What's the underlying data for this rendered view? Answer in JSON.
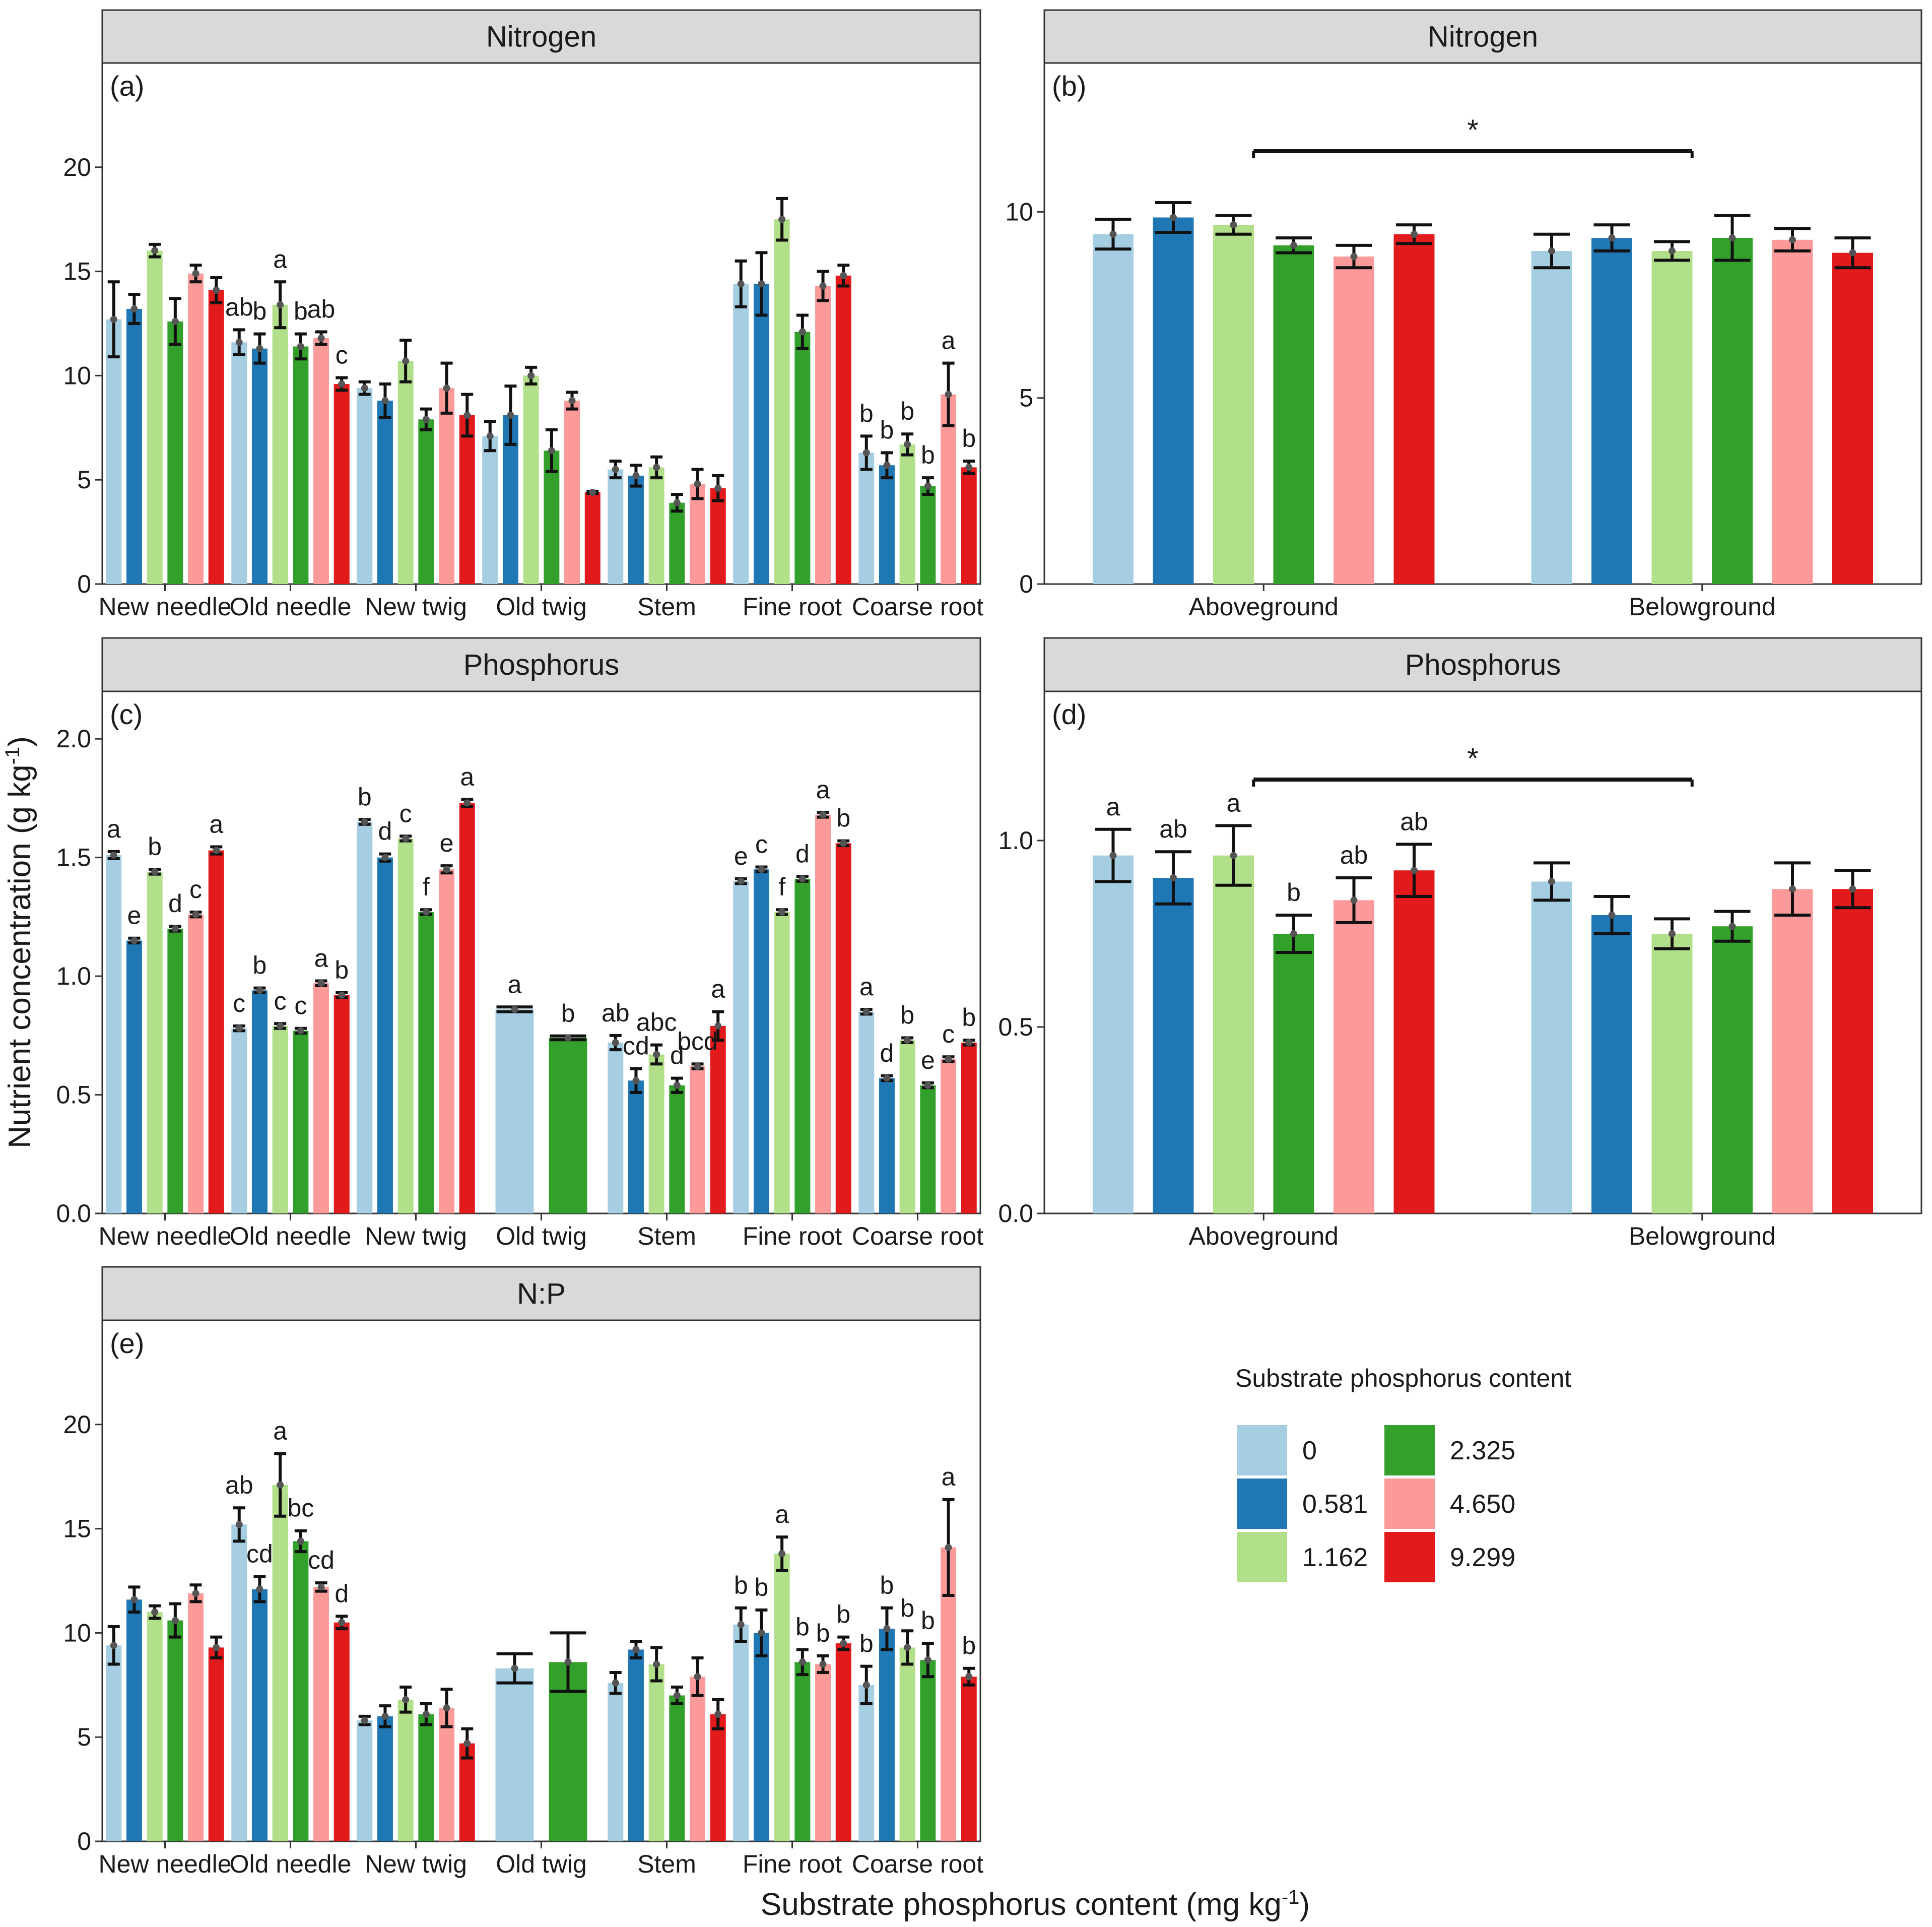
{
  "figure": {
    "x_axis_title": "Substrate phosphorus content (mg kg",
    "x_axis_title_sup": "-1",
    "x_axis_title_end": ")",
    "y_axis_title": "Nutrient concentration (g kg",
    "y_axis_title_sup": "-1",
    "y_axis_title_end": ")"
  },
  "legend": {
    "title": "Substrate phosphorus content",
    "items": [
      {
        "label": "0",
        "color": "#a6cee3"
      },
      {
        "label": "0.581",
        "color": "#1f78b4"
      },
      {
        "label": "1.162",
        "color": "#b2df8a"
      },
      {
        "label": "2.325",
        "color": "#33a02c"
      },
      {
        "label": "4.650",
        "color": "#fb9a99"
      },
      {
        "label": "9.299",
        "color": "#e31a1c"
      }
    ]
  },
  "chart_data": [
    {
      "id": "a",
      "type": "bar",
      "strip": "Nitrogen",
      "panel_label": "(a)",
      "ylim": [
        0,
        25
      ],
      "yticks": [
        "0",
        "5",
        "10",
        "15",
        "20"
      ],
      "ytick_values": [
        0,
        5,
        10,
        15,
        20
      ],
      "categories": [
        "New needle",
        "Old needle",
        "New twig",
        "Old twig",
        "Stem",
        "Fine root",
        "Coarse root"
      ],
      "series_names": [
        "0",
        "0.581",
        "1.162",
        "2.325",
        "4.650",
        "9.299"
      ],
      "values": [
        [
          12.7,
          13.2,
          16.0,
          12.6,
          14.9,
          14.1
        ],
        [
          11.6,
          11.3,
          13.4,
          11.4,
          11.8,
          9.6
        ],
        [
          9.4,
          8.8,
          10.7,
          7.9,
          9.4,
          8.1
        ],
        [
          7.1,
          8.1,
          10.0,
          6.4,
          8.8,
          4.4
        ],
        [
          5.5,
          5.2,
          5.6,
          3.9,
          4.8,
          4.6
        ],
        [
          14.4,
          14.4,
          17.5,
          12.1,
          14.3,
          14.8
        ],
        [
          6.3,
          5.7,
          6.7,
          4.7,
          9.1,
          5.6
        ]
      ],
      "errors": [
        [
          1.8,
          0.7,
          0.3,
          1.1,
          0.4,
          0.6
        ],
        [
          0.6,
          0.7,
          1.1,
          0.6,
          0.3,
          0.3
        ],
        [
          0.3,
          0.8,
          1.0,
          0.5,
          1.2,
          1.0
        ],
        [
          0.7,
          1.4,
          0.4,
          1.0,
          0.4,
          0.05
        ],
        [
          0.4,
          0.5,
          0.5,
          0.4,
          0.7,
          0.6
        ],
        [
          1.1,
          1.5,
          1.0,
          0.8,
          0.7,
          0.5
        ],
        [
          0.8,
          0.6,
          0.5,
          0.4,
          1.5,
          0.3
        ]
      ],
      "sig_labels": [
        {
          "cat": 1,
          "s": 0,
          "text": "ab"
        },
        {
          "cat": 1,
          "s": 1,
          "text": "b"
        },
        {
          "cat": 1,
          "s": 2,
          "text": "a"
        },
        {
          "cat": 1,
          "s": 3,
          "text": "b"
        },
        {
          "cat": 1,
          "s": 4,
          "text": "ab"
        },
        {
          "cat": 1,
          "s": 5,
          "text": "c"
        },
        {
          "cat": 6,
          "s": 0,
          "text": "b"
        },
        {
          "cat": 6,
          "s": 1,
          "text": "b"
        },
        {
          "cat": 6,
          "s": 2,
          "text": "b"
        },
        {
          "cat": 6,
          "s": 3,
          "text": "b"
        },
        {
          "cat": 6,
          "s": 4,
          "text": "a"
        },
        {
          "cat": 6,
          "s": 5,
          "text": "b"
        }
      ]
    },
    {
      "id": "b",
      "type": "bar",
      "strip": "Nitrogen",
      "panel_label": "(b)",
      "ylim": [
        0,
        14
      ],
      "yticks": [
        "0",
        "5",
        "10"
      ],
      "ytick_values": [
        0,
        5,
        10
      ],
      "categories": [
        "Aboveground",
        "Belowground"
      ],
      "series_names": [
        "0",
        "0.581",
        "1.162",
        "2.325",
        "4.650",
        "9.299"
      ],
      "values": [
        [
          9.4,
          9.85,
          9.65,
          9.1,
          8.8,
          9.4
        ],
        [
          8.95,
          9.3,
          8.95,
          9.3,
          9.25,
          8.9
        ]
      ],
      "errors": [
        [
          0.4,
          0.4,
          0.25,
          0.2,
          0.3,
          0.25
        ],
        [
          0.45,
          0.35,
          0.25,
          0.6,
          0.3,
          0.4
        ]
      ],
      "significance": "*",
      "sig_labels": []
    },
    {
      "id": "c",
      "type": "bar",
      "strip": "Phosphorus",
      "panel_label": "(c)",
      "ylim": [
        0,
        2.2
      ],
      "yticks": [
        "0.0",
        "0.5",
        "1.0",
        "1.5",
        "2.0"
      ],
      "ytick_values": [
        0,
        0.5,
        1.0,
        1.5,
        2.0
      ],
      "categories": [
        "New needle",
        "Old needle",
        "New twig",
        "Old twig",
        "Stem",
        "Fine root",
        "Coarse root"
      ],
      "series_names": [
        "0",
        "0.581",
        "1.162",
        "2.325",
        "4.650",
        "9.299"
      ],
      "values": [
        [
          1.51,
          1.15,
          1.44,
          1.2,
          1.26,
          1.53
        ],
        [
          0.78,
          0.94,
          0.79,
          0.77,
          0.97,
          0.92
        ],
        [
          1.65,
          1.5,
          1.58,
          1.27,
          1.45,
          1.73
        ],
        [
          0.86,
          null,
          null,
          0.74,
          null,
          null
        ],
        [
          0.72,
          0.56,
          0.67,
          0.54,
          0.62,
          0.79
        ],
        [
          1.4,
          1.45,
          1.27,
          1.41,
          1.68,
          1.56
        ],
        [
          0.85,
          0.57,
          0.73,
          0.54,
          0.65,
          0.72
        ]
      ],
      "errors": [
        [
          0.015,
          0.01,
          0.01,
          0.01,
          0.01,
          0.015
        ],
        [
          0.01,
          0.01,
          0.01,
          0.01,
          0.01,
          0.01
        ],
        [
          0.01,
          0.015,
          0.01,
          0.01,
          0.015,
          0.015
        ],
        [
          0.01,
          null,
          null,
          0.008,
          null,
          null
        ],
        [
          0.03,
          0.05,
          0.04,
          0.03,
          0.01,
          0.06
        ],
        [
          0.01,
          0.01,
          0.01,
          0.01,
          0.01,
          0.01
        ],
        [
          0.01,
          0.01,
          0.01,
          0.01,
          0.01,
          0.01
        ]
      ],
      "sig_labels": [
        {
          "cat": 0,
          "s": 0,
          "text": "a"
        },
        {
          "cat": 0,
          "s": 1,
          "text": "e"
        },
        {
          "cat": 0,
          "s": 2,
          "text": "b"
        },
        {
          "cat": 0,
          "s": 3,
          "text": "d"
        },
        {
          "cat": 0,
          "s": 4,
          "text": "c"
        },
        {
          "cat": 0,
          "s": 5,
          "text": "a"
        },
        {
          "cat": 1,
          "s": 0,
          "text": "c"
        },
        {
          "cat": 1,
          "s": 1,
          "text": "b"
        },
        {
          "cat": 1,
          "s": 2,
          "text": "c"
        },
        {
          "cat": 1,
          "s": 3,
          "text": "c"
        },
        {
          "cat": 1,
          "s": 4,
          "text": "a"
        },
        {
          "cat": 1,
          "s": 5,
          "text": "b"
        },
        {
          "cat": 2,
          "s": 0,
          "text": "b"
        },
        {
          "cat": 2,
          "s": 1,
          "text": "d"
        },
        {
          "cat": 2,
          "s": 2,
          "text": "c"
        },
        {
          "cat": 2,
          "s": 3,
          "text": "f"
        },
        {
          "cat": 2,
          "s": 4,
          "text": "e"
        },
        {
          "cat": 2,
          "s": 5,
          "text": "a"
        },
        {
          "cat": 3,
          "s": 0,
          "text": "a"
        },
        {
          "cat": 3,
          "s": 3,
          "text": "b"
        },
        {
          "cat": 4,
          "s": 0,
          "text": "ab"
        },
        {
          "cat": 4,
          "s": 1,
          "text": "cd"
        },
        {
          "cat": 4,
          "s": 2,
          "text": "abc"
        },
        {
          "cat": 4,
          "s": 3,
          "text": "d"
        },
        {
          "cat": 4,
          "s": 4,
          "text": "bcd"
        },
        {
          "cat": 4,
          "s": 5,
          "text": "a"
        },
        {
          "cat": 5,
          "s": 0,
          "text": "e"
        },
        {
          "cat": 5,
          "s": 1,
          "text": "c"
        },
        {
          "cat": 5,
          "s": 2,
          "text": "f"
        },
        {
          "cat": 5,
          "s": 3,
          "text": "d"
        },
        {
          "cat": 5,
          "s": 4,
          "text": "a"
        },
        {
          "cat": 5,
          "s": 5,
          "text": "b"
        },
        {
          "cat": 6,
          "s": 0,
          "text": "a"
        },
        {
          "cat": 6,
          "s": 1,
          "text": "d"
        },
        {
          "cat": 6,
          "s": 2,
          "text": "b"
        },
        {
          "cat": 6,
          "s": 3,
          "text": "e"
        },
        {
          "cat": 6,
          "s": 4,
          "text": "c"
        },
        {
          "cat": 6,
          "s": 5,
          "text": "b"
        }
      ]
    },
    {
      "id": "d",
      "type": "bar",
      "strip": "Phosphorus",
      "panel_label": "(d)",
      "ylim": [
        0,
        1.4
      ],
      "yticks": [
        "0.0",
        "0.5",
        "1.0"
      ],
      "ytick_values": [
        0,
        0.5,
        1.0
      ],
      "categories": [
        "Aboveground",
        "Belowground"
      ],
      "series_names": [
        "0",
        "0.581",
        "1.162",
        "2.325",
        "4.650",
        "9.299"
      ],
      "values": [
        [
          0.96,
          0.9,
          0.96,
          0.75,
          0.84,
          0.92
        ],
        [
          0.89,
          0.8,
          0.75,
          0.77,
          0.87,
          0.87
        ]
      ],
      "errors": [
        [
          0.07,
          0.07,
          0.08,
          0.05,
          0.06,
          0.07
        ],
        [
          0.05,
          0.05,
          0.04,
          0.04,
          0.07,
          0.05
        ]
      ],
      "significance": "*",
      "sig_labels": [
        {
          "cat": 0,
          "s": 0,
          "text": "a"
        },
        {
          "cat": 0,
          "s": 1,
          "text": "ab"
        },
        {
          "cat": 0,
          "s": 2,
          "text": "a"
        },
        {
          "cat": 0,
          "s": 3,
          "text": "b"
        },
        {
          "cat": 0,
          "s": 4,
          "text": "ab"
        },
        {
          "cat": 0,
          "s": 5,
          "text": "ab"
        }
      ]
    },
    {
      "id": "e",
      "type": "bar",
      "strip": "N:P",
      "panel_label": "(e)",
      "ylim": [
        0,
        25
      ],
      "yticks": [
        "0",
        "5",
        "10",
        "15",
        "20"
      ],
      "ytick_values": [
        0,
        5,
        10,
        15,
        20
      ],
      "categories": [
        "New needle",
        "Old needle",
        "New twig",
        "Old twig",
        "Stem",
        "Fine root",
        "Coarse root"
      ],
      "series_names": [
        "0",
        "0.581",
        "1.162",
        "2.325",
        "4.650",
        "9.299"
      ],
      "values": [
        [
          9.4,
          11.6,
          11.0,
          10.6,
          11.9,
          9.3
        ],
        [
          15.2,
          12.1,
          17.1,
          14.4,
          12.2,
          10.5
        ],
        [
          5.8,
          6.0,
          6.8,
          6.1,
          6.4,
          4.7
        ],
        [
          8.3,
          null,
          null,
          8.6,
          null,
          null
        ],
        [
          7.6,
          9.2,
          8.5,
          7.0,
          7.9,
          6.1
        ],
        [
          10.4,
          10.0,
          13.8,
          8.6,
          8.5,
          9.5
        ],
        [
          7.5,
          10.2,
          9.3,
          8.7,
          14.1,
          7.9
        ]
      ],
      "errors": [
        [
          0.9,
          0.6,
          0.3,
          0.8,
          0.4,
          0.5
        ],
        [
          0.8,
          0.6,
          1.5,
          0.5,
          0.2,
          0.3
        ],
        [
          0.2,
          0.5,
          0.6,
          0.5,
          0.9,
          0.7
        ],
        [
          0.7,
          null,
          null,
          1.4,
          null,
          null
        ],
        [
          0.5,
          0.4,
          0.8,
          0.4,
          0.9,
          0.7
        ],
        [
          0.8,
          1.1,
          0.8,
          0.6,
          0.4,
          0.3
        ],
        [
          0.9,
          1.0,
          0.8,
          0.8,
          2.3,
          0.4
        ]
      ],
      "sig_labels": [
        {
          "cat": 1,
          "s": 0,
          "text": "ab"
        },
        {
          "cat": 1,
          "s": 1,
          "text": "cd"
        },
        {
          "cat": 1,
          "s": 2,
          "text": "a"
        },
        {
          "cat": 1,
          "s": 3,
          "text": "bc"
        },
        {
          "cat": 1,
          "s": 4,
          "text": "cd"
        },
        {
          "cat": 1,
          "s": 5,
          "text": "d"
        },
        {
          "cat": 5,
          "s": 0,
          "text": "b"
        },
        {
          "cat": 5,
          "s": 1,
          "text": "b"
        },
        {
          "cat": 5,
          "s": 2,
          "text": "a"
        },
        {
          "cat": 5,
          "s": 3,
          "text": "b"
        },
        {
          "cat": 5,
          "s": 4,
          "text": "b"
        },
        {
          "cat": 5,
          "s": 5,
          "text": "b"
        },
        {
          "cat": 6,
          "s": 0,
          "text": "b"
        },
        {
          "cat": 6,
          "s": 1,
          "text": "b"
        },
        {
          "cat": 6,
          "s": 2,
          "text": "b"
        },
        {
          "cat": 6,
          "s": 3,
          "text": "b"
        },
        {
          "cat": 6,
          "s": 4,
          "text": "a"
        },
        {
          "cat": 6,
          "s": 5,
          "text": "b"
        }
      ]
    }
  ]
}
